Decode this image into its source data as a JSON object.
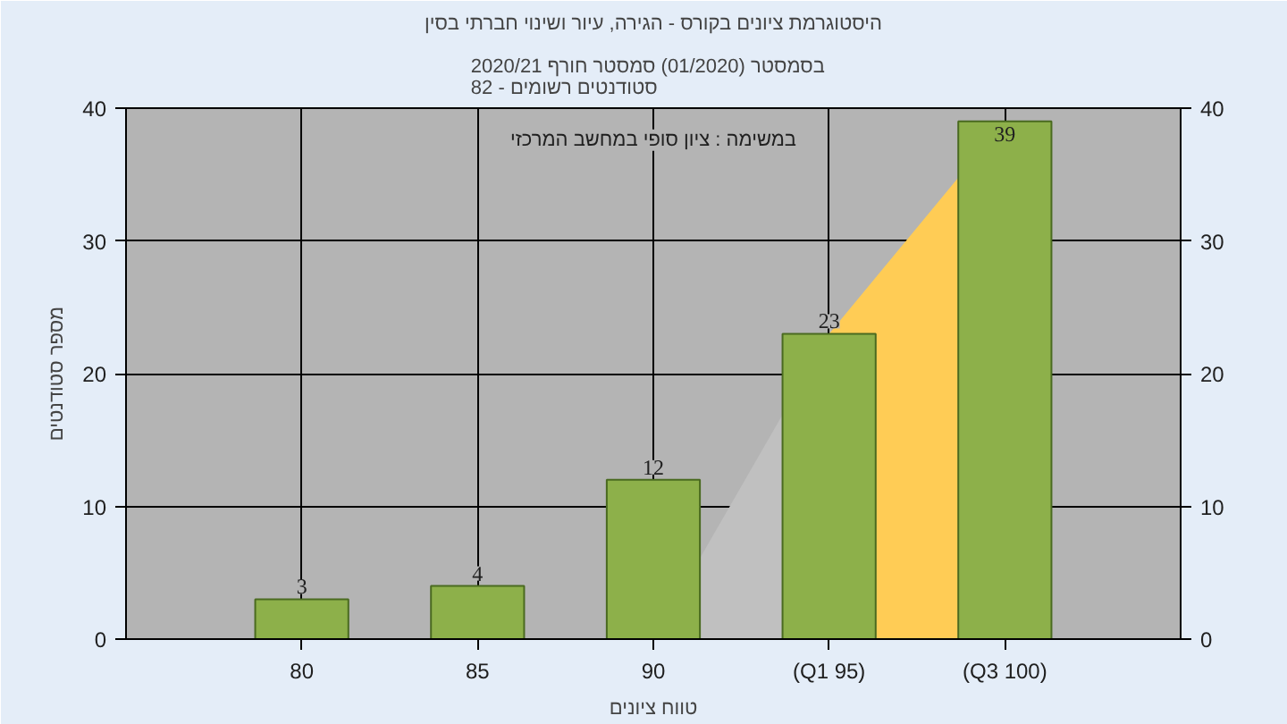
{
  "chart_data": {
    "type": "bar",
    "title": "היסטוגרמת ציונים בקורס - הגירה, עיור ושינוי חברתי בסין",
    "subtitle": "בסמסטר  (01/2020)  סמסטר חורף 2020/21\nסטודנטים רשומים - 82",
    "xlabel": "טווח ציונים",
    "ylabel": "מספר סטודנטים",
    "annotations": [
      "במשימה : ציון סופי במחשב המרכזי"
    ],
    "categories": [
      "80",
      "85",
      "90",
      "(Q1 95)",
      "(Q3 100)"
    ],
    "series": [
      {
        "type": "area",
        "color": "#c0c0c0",
        "values": [
          null,
          null,
          0,
          23,
          null
        ]
      },
      {
        "type": "area",
        "color": "#ffcc55",
        "values": [
          null,
          null,
          null,
          23,
          39
        ]
      },
      {
        "color": "#8db04a",
        "values": [
          3,
          4,
          12,
          23,
          39
        ],
        "data_labels": true
      }
    ],
    "ylim": [
      0,
      40
    ],
    "yticks": [
      0,
      10,
      20,
      30,
      40
    ],
    "y2lim": [
      0,
      40
    ],
    "y2ticks": [
      0,
      10,
      20,
      30,
      40
    ],
    "grid": true
  }
}
